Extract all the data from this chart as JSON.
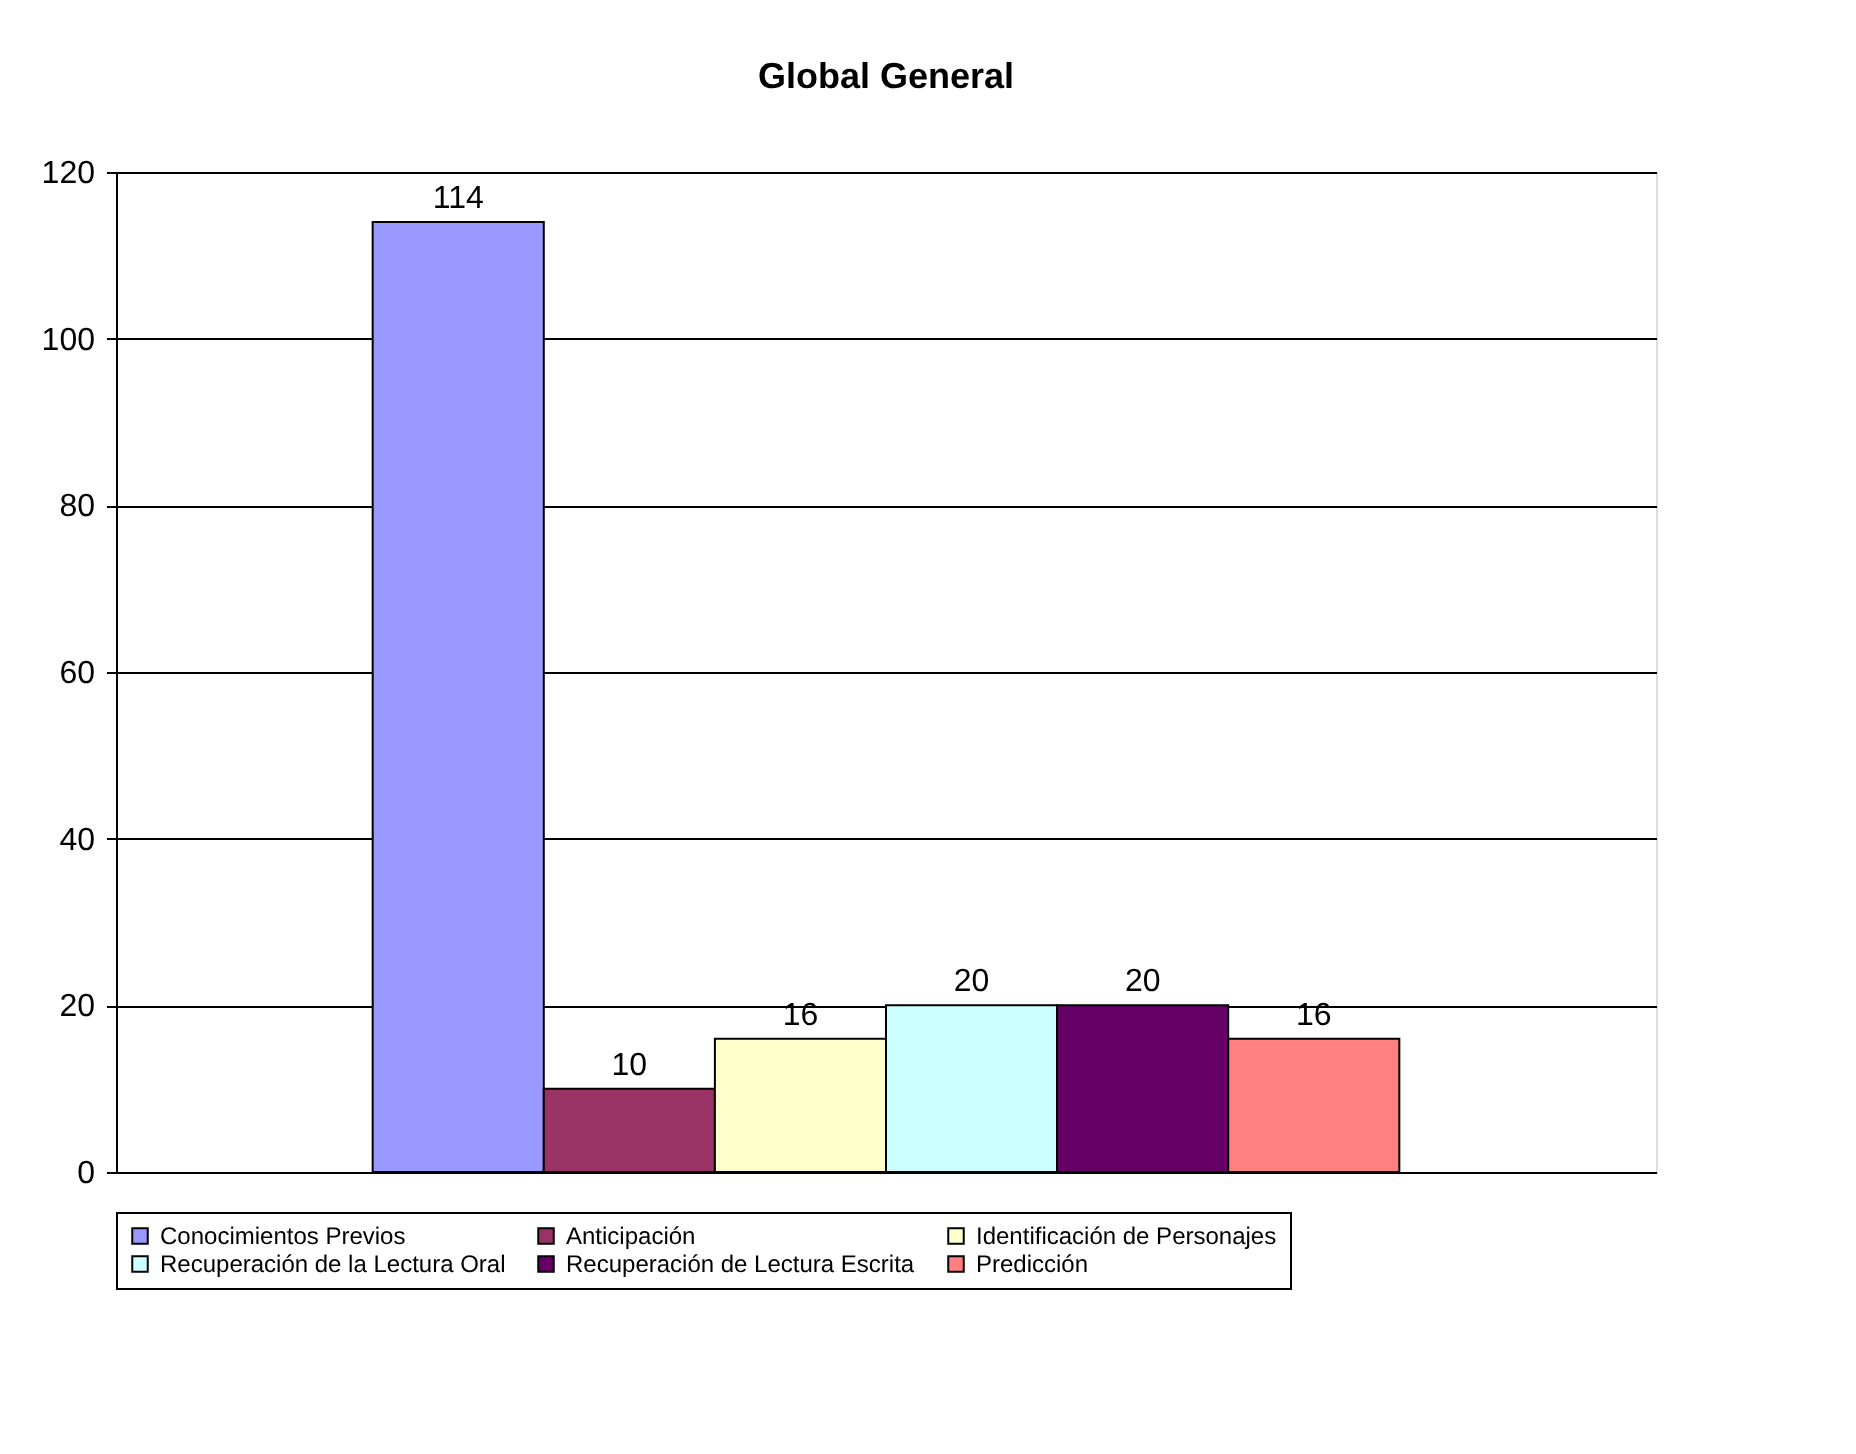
{
  "chart_data": {
    "type": "bar",
    "title": "Global General",
    "categories": [
      null
    ],
    "series": [
      {
        "name": "Conocimientos Previos",
        "color": "#9999ff",
        "values": [
          114
        ]
      },
      {
        "name": "Anticipación",
        "color": "#993366",
        "values": [
          10
        ]
      },
      {
        "name": "Identificación de Personajes",
        "color": "#ffffcc",
        "values": [
          16
        ]
      },
      {
        "name": "Recuperación de la Lectura Oral",
        "color": "#ccffff",
        "values": [
          20
        ]
      },
      {
        "name": "Recuperación de Lectura Escrita",
        "color": "#660066",
        "values": [
          20
        ]
      },
      {
        "name": "Predicción",
        "color": "#ff8080",
        "values": [
          16
        ]
      }
    ],
    "ylim": [
      0,
      120
    ],
    "yticks": [
      0,
      20,
      40,
      60,
      80,
      100,
      120
    ],
    "grid": "y",
    "legend": "bottom",
    "data_labels": true
  }
}
